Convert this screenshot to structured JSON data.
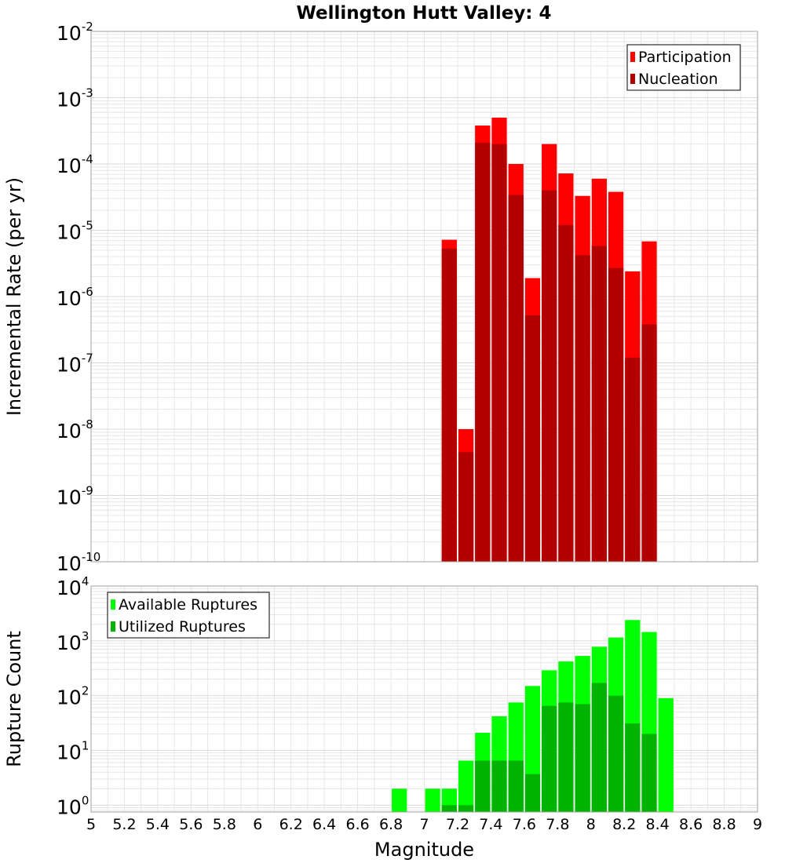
{
  "title": "Wellington Hutt Valley: 4",
  "colors": {
    "participation": "#ff0000",
    "nucleation": "#b30000",
    "available": "#00ff00",
    "utilized": "#00b300",
    "grid": "#e6e6e6",
    "bar_edge": "#ffffff"
  },
  "chart_data": [
    {
      "id": "rate",
      "type": "bar",
      "ylabel": "Incremental Rate (per yr)",
      "xlabel": "",
      "yscale": "log",
      "ylim": [
        1e-10,
        0.01
      ],
      "xlim": [
        5,
        9
      ],
      "bin_width": 0.1,
      "grid": true,
      "legend": "top-right",
      "y_ticks": [
        {
          "value": 1e-10,
          "base": "10",
          "exp": "-10"
        },
        {
          "value": 1e-09,
          "base": "10",
          "exp": "-9"
        },
        {
          "value": 1e-08,
          "base": "10",
          "exp": "-8"
        },
        {
          "value": 1e-07,
          "base": "10",
          "exp": "-7"
        },
        {
          "value": 1e-06,
          "base": "10",
          "exp": "-6"
        },
        {
          "value": 1e-05,
          "base": "10",
          "exp": "-5"
        },
        {
          "value": 0.0001,
          "base": "10",
          "exp": "-4"
        },
        {
          "value": 0.001,
          "base": "10",
          "exp": "-3"
        },
        {
          "value": 0.01,
          "base": "10",
          "exp": "-2"
        }
      ],
      "series": [
        {
          "name": "Participation",
          "color_key": "participation",
          "x": [
            7.15,
            7.25,
            7.35,
            7.45,
            7.55,
            7.65,
            7.75,
            7.85,
            7.95,
            8.05,
            8.15,
            8.25,
            8.35
          ],
          "values": [
            7.2e-06,
            1e-08,
            0.00038,
            0.0005,
            0.0001,
            1.9e-06,
            0.0002,
            7.2e-05,
            3.3e-05,
            6e-05,
            3.8e-05,
            2.4e-06,
            6.8e-06
          ]
        },
        {
          "name": "Nucleation",
          "color_key": "nucleation",
          "x": [
            7.15,
            7.25,
            7.35,
            7.45,
            7.55,
            7.65,
            7.75,
            7.85,
            7.95,
            8.05,
            8.15,
            8.25,
            8.35
          ],
          "values": [
            5.3e-06,
            4.5e-09,
            0.00021,
            0.0002,
            3.4e-05,
            5.2e-07,
            4e-05,
            1.2e-05,
            4.2e-06,
            5.8e-06,
            2.7e-06,
            1.2e-07,
            3.8e-07
          ]
        }
      ]
    },
    {
      "id": "count",
      "type": "bar",
      "ylabel": "Rupture Count",
      "xlabel": "Magnitude",
      "yscale": "log",
      "ylim": [
        0.75,
        10000
      ],
      "xlim": [
        5,
        9
      ],
      "bin_width": 0.1,
      "grid": true,
      "legend": "top-left",
      "x_ticks": [
        "5",
        "5.2",
        "5.4",
        "5.6",
        "5.8",
        "6",
        "6.2",
        "6.4",
        "6.6",
        "6.8",
        "7",
        "7.2",
        "7.4",
        "7.6",
        "7.8",
        "8",
        "8.2",
        "8.4",
        "8.6",
        "8.8",
        "9"
      ],
      "y_ticks": [
        {
          "value": 1,
          "base": "10",
          "exp": "0"
        },
        {
          "value": 10,
          "base": "10",
          "exp": "1"
        },
        {
          "value": 100,
          "base": "10",
          "exp": "2"
        },
        {
          "value": 1000,
          "base": "10",
          "exp": "3"
        },
        {
          "value": 10000,
          "base": "10",
          "exp": "4"
        }
      ],
      "series": [
        {
          "name": "Available Ruptures",
          "color_key": "available",
          "x": [
            6.85,
            7.05,
            7.15,
            7.25,
            7.35,
            7.45,
            7.55,
            7.65,
            7.75,
            7.85,
            7.95,
            8.05,
            8.15,
            8.25,
            8.35,
            8.45
          ],
          "values": [
            2,
            2,
            2,
            6.5,
            21,
            42,
            75,
            150,
            290,
            420,
            530,
            780,
            1150,
            2400,
            1450,
            90
          ]
        },
        {
          "name": "Utilized Ruptures",
          "color_key": "utilized",
          "x": [
            7.15,
            7.25,
            7.35,
            7.45,
            7.55,
            7.65,
            7.75,
            7.85,
            7.95,
            8.05,
            8.15,
            8.25,
            8.35
          ],
          "values": [
            1,
            1,
            6.5,
            6.5,
            6.5,
            3.7,
            65,
            75,
            70,
            170,
            100,
            31,
            20
          ]
        }
      ]
    }
  ]
}
